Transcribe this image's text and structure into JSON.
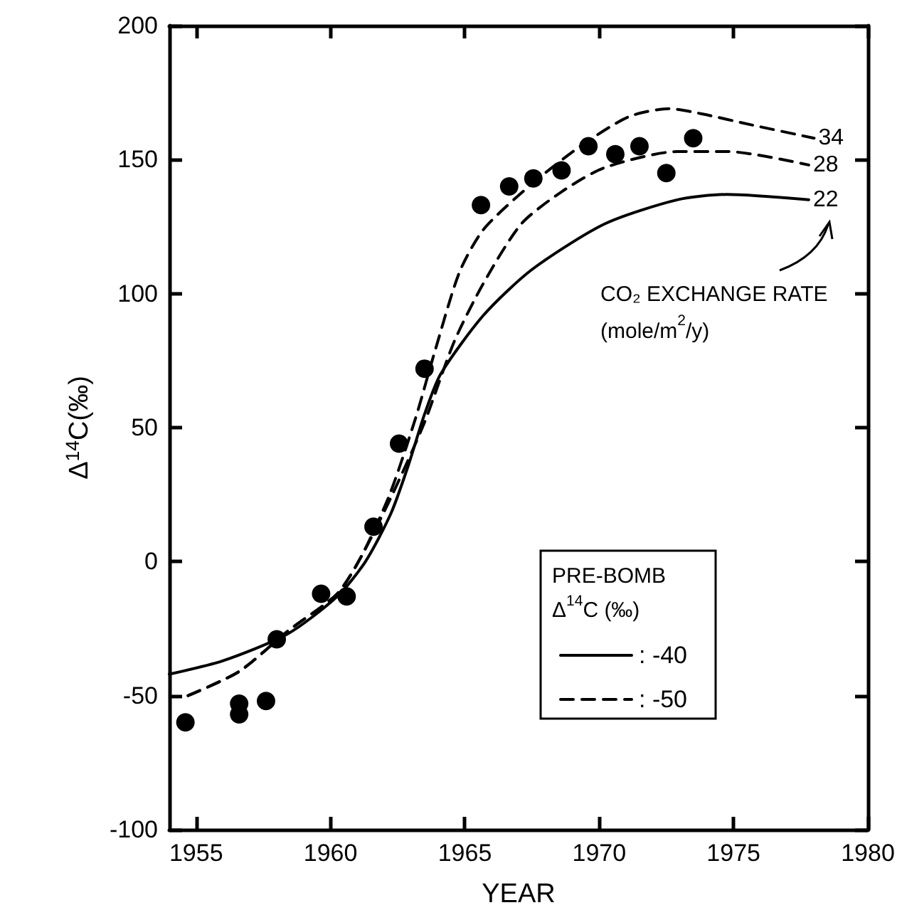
{
  "chart_data": {
    "type": "scatter",
    "xlabel": "YEAR",
    "ylabel": "Δ$^{14}$C(‰)",
    "legend_title": "PRE-BOMB Δ$^{14}$C (‰)",
    "xlim": [
      1954,
      1980
    ],
    "xticks": [
      1955,
      1960,
      1965,
      1970,
      1975,
      1980
    ],
    "ylim": [
      -100,
      200
    ],
    "yticks": [
      -100,
      -50,
      0,
      50,
      100,
      150,
      200
    ],
    "grid": false,
    "legend": "right",
    "marker": "circle",
    "series": [
      {
        "color": "#000000",
        "x": [
          1954.6,
          1956.6,
          1956.6,
          1957.6,
          1958.0,
          1959.65,
          1960.6,
          1961.6,
          1962.55,
          1963.5,
          1965.6,
          1966.65,
          1967.55,
          1968.6,
          1969.6,
          1970.6,
          1971.5,
          1972.5,
          1973.5
        ],
        "values": [
          -60,
          -53,
          -57,
          -52,
          -29,
          -12,
          -13,
          13,
          44,
          72,
          133,
          140,
          143,
          146,
          155,
          152,
          155,
          145,
          158
        ]
      },
      {
        "type": "line",
        "name": ": -40",
        "color": "#000000",
        "marker": "none",
        "line_style": "solid",
        "x": [
          1954,
          1956,
          1958.4,
          1960.25,
          1961.3,
          1962.25,
          1962.9,
          1963.5,
          1964.1,
          1965.7,
          1967.5,
          1970.2,
          1972.9,
          1974.75,
          1977.8
        ],
        "values": [
          -42,
          -37,
          -27,
          -13,
          0,
          18,
          36,
          55,
          70,
          92,
          109,
          126,
          135,
          137,
          135
        ]
      },
      {
        "type": "line",
        "name": ": -50",
        "color": "#000000",
        "marker": "none",
        "line_style": "dashed",
        "x": [
          1954.7,
          1956.6,
          1958.4,
          1960.25,
          1961.15,
          1962.2,
          1963.15,
          1963.9,
          1964.8,
          1965.7,
          1967.5,
          1969.3,
          1971.1,
          1972.6,
          1973.85,
          1975.65,
          1978.0
        ],
        "values": [
          -50,
          -41,
          -26,
          -12,
          2,
          25,
          53,
          79,
          108,
          124,
          141,
          155,
          166,
          169,
          167,
          163,
          158
        ]
      },
      {
        "type": "line",
        "color": "#000000",
        "marker": "none",
        "line_style": "dashed",
        "x": [
          1954.7,
          1956.6,
          1958.4,
          1960.25,
          1961.15,
          1962.3,
          1963.5,
          1964.6,
          1965.7,
          1967.1,
          1968.6,
          1970.2,
          1972.9,
          1974.8,
          1977.8
        ],
        "values": [
          -50,
          -41,
          -26,
          -12,
          2,
          25,
          52,
          82,
          104,
          126,
          138,
          147,
          153,
          153,
          148
        ]
      }
    ],
    "annotations": [
      "34",
      "28",
      "22",
      "CO₂ EXCHANGE RATE (mole/m$^{2}$/y)"
    ]
  }
}
